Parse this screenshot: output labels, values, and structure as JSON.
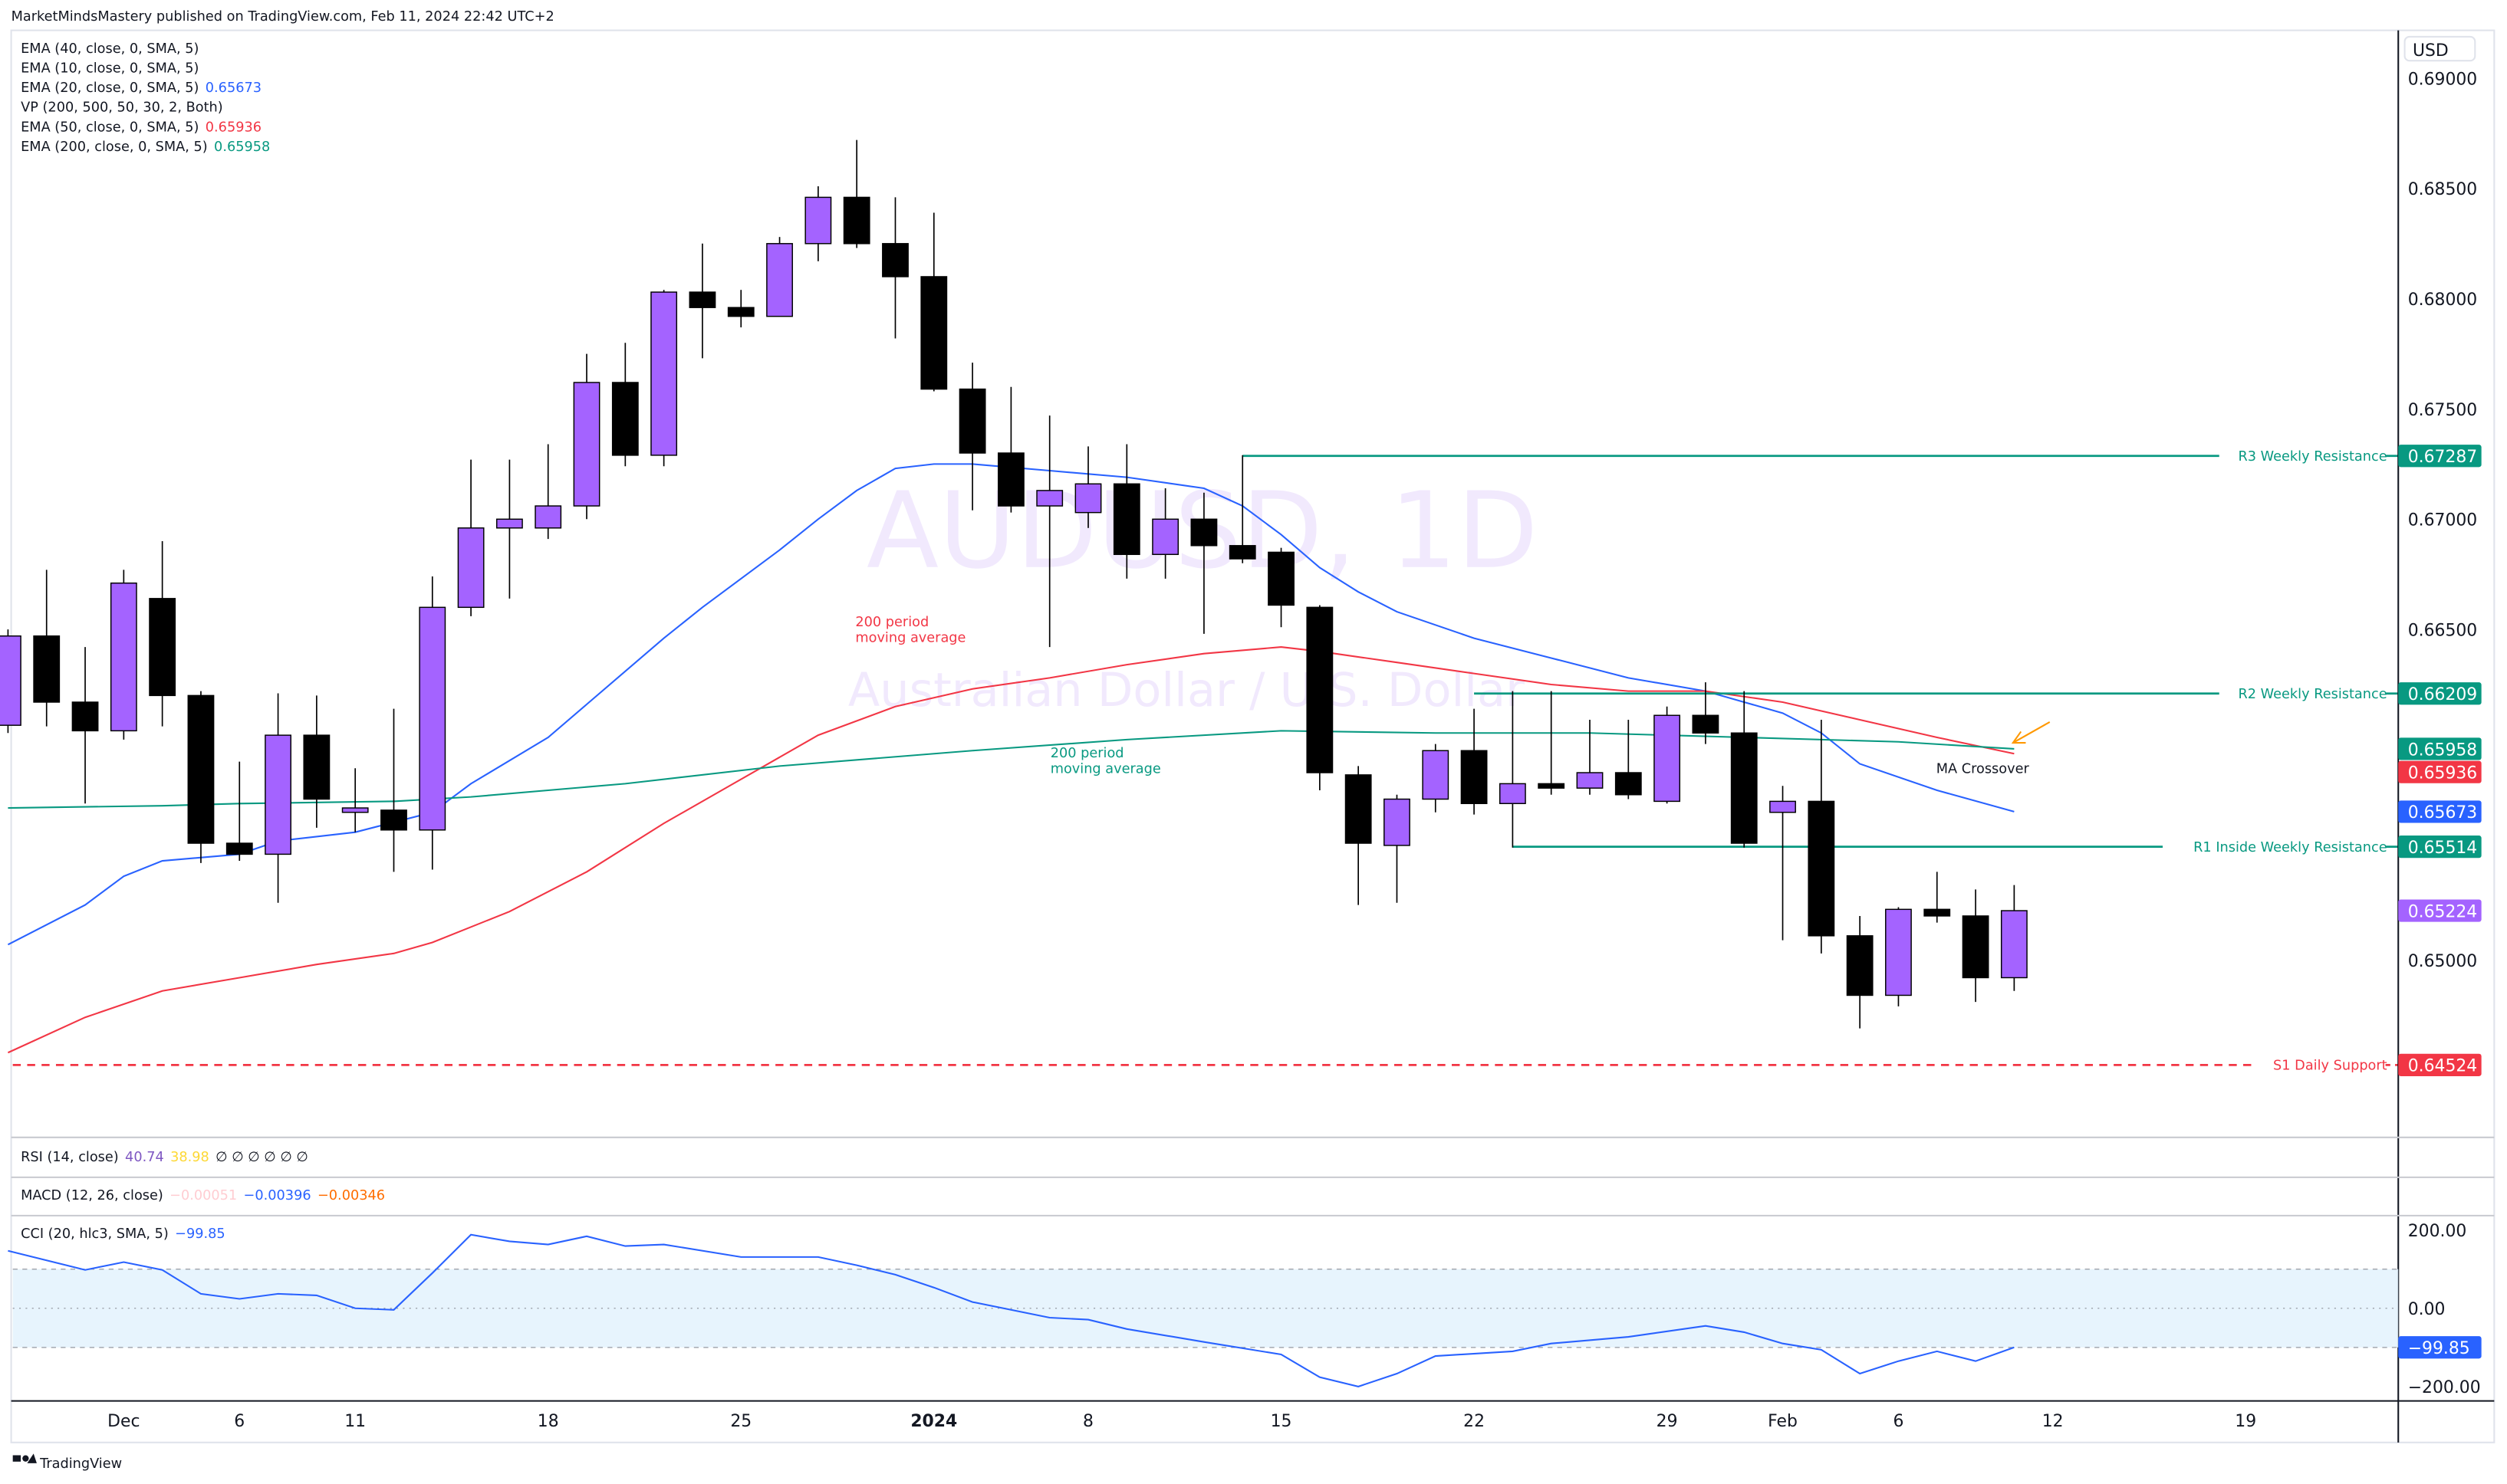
{
  "header": {
    "published": "MarketMindsMastery published on TradingView.com, Feb 11, 2024 22:42 UTC+2"
  },
  "legend": [
    {
      "label": "EMA (40, close, 0, SMA, 5)",
      "value": "",
      "color": "#131722"
    },
    {
      "label": "EMA (10, close, 0, SMA, 5)",
      "value": "",
      "color": "#131722"
    },
    {
      "label": "EMA (20, close, 0, SMA, 5)",
      "value": "0.65673",
      "color": "#2962ff"
    },
    {
      "label": "VP (200, 500, 50, 30, 2, Both)",
      "value": "",
      "color": "#131722"
    },
    {
      "label": "EMA (50, close, 0, SMA, 5)",
      "value": "0.65936",
      "color": "#f23645"
    },
    {
      "label": "EMA (200, close, 0, SMA, 5)",
      "value": "0.65958",
      "color": "#089981"
    }
  ],
  "watermark": {
    "symbol": "AUDUSD, 1D",
    "name": "Australian Dollar / U.S. Dollar"
  },
  "currency": "USD",
  "indicators": {
    "rsi": {
      "label": "RSI (14, close)",
      "v1": "40.74",
      "v2": "38.98",
      "rest": "∅ ∅ ∅ ∅ ∅ ∅"
    },
    "macd": {
      "label": "MACD (12, 26, close)",
      "v1": "−0.00051",
      "v2": "−0.00396",
      "v3": "−0.00346"
    },
    "cci": {
      "label": "CCI (20, hlc3, SMA, 5)",
      "v1": "−99.85"
    }
  },
  "annotations": {
    "ema50_note_1": "200 period",
    "ema50_note_2": "moving average",
    "ema200_note_1": "200 period",
    "ema200_note_2": "moving average",
    "crossover": "MA Crossover"
  },
  "footer": {
    "brand": "TradingView"
  },
  "colors": {
    "up": "#a463ff",
    "down": "#000000",
    "ema20": "#2962ff",
    "ema50": "#f23645",
    "ema200": "#089981",
    "watermark": "#f1e9fd"
  },
  "chart_data": {
    "type": "candlestick",
    "title": "AUDUSD, 1D",
    "ylabel": "USD",
    "ylim": [
      0.6415,
      0.6915
    ],
    "y_ticks": [
      "0.69000",
      "0.68500",
      "0.68000",
      "0.67500",
      "0.67000",
      "0.66500",
      "0.65000"
    ],
    "x_ticks": [
      {
        "i": 3,
        "label": "Dec",
        "bold": false
      },
      {
        "i": 6,
        "label": "6",
        "bold": false
      },
      {
        "i": 9,
        "label": "11",
        "bold": false
      },
      {
        "i": 14,
        "label": "18",
        "bold": false
      },
      {
        "i": 19,
        "label": "25",
        "bold": false
      },
      {
        "i": 24,
        "label": "2024",
        "bold": true
      },
      {
        "i": 28,
        "label": "8",
        "bold": false
      },
      {
        "i": 33,
        "label": "15",
        "bold": false
      },
      {
        "i": 38,
        "label": "22",
        "bold": false
      },
      {
        "i": 43,
        "label": "29",
        "bold": false
      },
      {
        "i": 46,
        "label": "Feb",
        "bold": false
      },
      {
        "i": 49,
        "label": "6",
        "bold": false
      },
      {
        "i": 53,
        "label": "12",
        "bold": false
      },
      {
        "i": 58,
        "label": "19",
        "bold": false
      }
    ],
    "ohlc": [
      [
        0.66065,
        0.665,
        0.6603,
        0.6647
      ],
      [
        0.6647,
        0.6677,
        0.6606,
        0.6617
      ],
      [
        0.6617,
        0.6642,
        0.6571,
        0.6604
      ],
      [
        0.6604,
        0.6677,
        0.66,
        0.6671
      ],
      [
        0.6664,
        0.669,
        0.6606,
        0.662
      ],
      [
        0.662,
        0.6622,
        0.6544,
        0.6553
      ],
      [
        0.6553,
        0.659,
        0.6545,
        0.6548
      ],
      [
        0.6548,
        0.6621,
        0.6526,
        0.6602
      ],
      [
        0.6602,
        0.662,
        0.656,
        0.6573
      ],
      [
        0.6567,
        0.6587,
        0.6558,
        0.6569
      ],
      [
        0.6568,
        0.6614,
        0.654,
        0.6559
      ],
      [
        0.6559,
        0.6674,
        0.6541,
        0.666
      ],
      [
        0.666,
        0.6727,
        0.6656,
        0.6696
      ],
      [
        0.6696,
        0.6727,
        0.6664,
        0.67
      ],
      [
        0.6696,
        0.6734,
        0.6691,
        0.6706
      ],
      [
        0.6706,
        0.6775,
        0.67,
        0.6762
      ],
      [
        0.6762,
        0.678,
        0.6724,
        0.6729
      ],
      [
        0.6729,
        0.6804,
        0.6724,
        0.6803
      ],
      [
        0.6803,
        0.6825,
        0.6773,
        0.6796
      ],
      [
        0.6796,
        0.6804,
        0.6787,
        0.6792
      ],
      [
        0.6792,
        0.6828,
        0.6792,
        0.6825
      ],
      [
        0.6825,
        0.6851,
        0.6817,
        0.6846
      ],
      [
        0.6846,
        0.6872,
        0.6823,
        0.6825
      ],
      [
        0.6825,
        0.6846,
        0.6782,
        0.681
      ],
      [
        0.681,
        0.6839,
        0.6758,
        0.6759
      ],
      [
        0.6759,
        0.6771,
        0.6704,
        0.673
      ],
      [
        0.673,
        0.676,
        0.6703,
        0.6706
      ],
      [
        0.6706,
        0.6747,
        0.6642,
        0.6713
      ],
      [
        0.6703,
        0.6733,
        0.6696,
        0.6716
      ],
      [
        0.6716,
        0.6734,
        0.6673,
        0.6684
      ],
      [
        0.6684,
        0.6714,
        0.6673,
        0.67
      ],
      [
        0.67,
        0.6712,
        0.6648,
        0.6688
      ],
      [
        0.6688,
        0.6729,
        0.668,
        0.6682
      ],
      [
        0.6685,
        0.6687,
        0.6651,
        0.6661
      ],
      [
        0.666,
        0.6661,
        0.6577,
        0.6585
      ],
      [
        0.6584,
        0.6588,
        0.6525,
        0.6553
      ],
      [
        0.6552,
        0.6575,
        0.6526,
        0.6573
      ],
      [
        0.6573,
        0.6598,
        0.6567,
        0.6595
      ],
      [
        0.6595,
        0.6614,
        0.6566,
        0.6571
      ],
      [
        0.6571,
        0.6622,
        0.6551,
        0.658
      ],
      [
        0.658,
        0.6622,
        0.6575,
        0.6578
      ],
      [
        0.6578,
        0.6609,
        0.6575,
        0.6585
      ],
      [
        0.6585,
        0.6609,
        0.6573,
        0.6575
      ],
      [
        0.6572,
        0.6615,
        0.6571,
        0.6611
      ],
      [
        0.6611,
        0.6626,
        0.6598,
        0.6603
      ],
      [
        0.6603,
        0.6622,
        0.6551,
        0.6553
      ],
      [
        0.6567,
        0.6579,
        0.6509,
        0.6572
      ],
      [
        0.6572,
        0.6609,
        0.6503,
        0.6511
      ],
      [
        0.6511,
        0.652,
        0.6469,
        0.6484
      ],
      [
        0.6484,
        0.6524,
        0.6479,
        0.6523
      ],
      [
        0.6523,
        0.654,
        0.6517,
        0.652
      ],
      [
        0.652,
        0.6532,
        0.6481,
        0.6492
      ],
      [
        0.6492,
        0.6534,
        0.6486,
        0.65224
      ]
    ],
    "series": [
      {
        "name": "EMA 20",
        "color": "#2962ff",
        "points": [
          [
            0,
            0.6507
          ],
          [
            2,
            0.6525
          ],
          [
            3,
            0.6538
          ],
          [
            4,
            0.6545
          ],
          [
            6,
            0.6548
          ],
          [
            7,
            0.6554
          ],
          [
            9,
            0.6558
          ],
          [
            11,
            0.6567
          ],
          [
            12,
            0.658
          ],
          [
            14,
            0.6601
          ],
          [
            15,
            0.6616
          ],
          [
            17,
            0.6646
          ],
          [
            18,
            0.666
          ],
          [
            20,
            0.6686
          ],
          [
            21,
            0.67
          ],
          [
            22,
            0.6713
          ],
          [
            23,
            0.6723
          ],
          [
            24,
            0.6725
          ],
          [
            25,
            0.6725
          ],
          [
            27,
            0.6722
          ],
          [
            29,
            0.6719
          ],
          [
            31,
            0.6714
          ],
          [
            32,
            0.6706
          ],
          [
            33,
            0.6693
          ],
          [
            34,
            0.6678
          ],
          [
            35,
            0.6667
          ],
          [
            36,
            0.6658
          ],
          [
            38,
            0.6646
          ],
          [
            40,
            0.6637
          ],
          [
            42,
            0.6628
          ],
          [
            44,
            0.6622
          ],
          [
            45,
            0.6617
          ],
          [
            46,
            0.6612
          ],
          [
            47,
            0.6603
          ],
          [
            48,
            0.6589
          ],
          [
            50,
            0.6577
          ],
          [
            52,
            0.65673
          ]
        ]
      },
      {
        "name": "EMA 50",
        "color": "#f23645",
        "points": [
          [
            0,
            0.6458
          ],
          [
            2,
            0.6474
          ],
          [
            4,
            0.6486
          ],
          [
            6,
            0.6492
          ],
          [
            8,
            0.6498
          ],
          [
            10,
            0.6503
          ],
          [
            11,
            0.6508
          ],
          [
            13,
            0.6522
          ],
          [
            15,
            0.654
          ],
          [
            17,
            0.6562
          ],
          [
            19,
            0.6582
          ],
          [
            21,
            0.6602
          ],
          [
            23,
            0.6615
          ],
          [
            25,
            0.6623
          ],
          [
            27,
            0.6628
          ],
          [
            29,
            0.6634
          ],
          [
            31,
            0.6639
          ],
          [
            33,
            0.6642
          ],
          [
            34,
            0.664
          ],
          [
            36,
            0.6635
          ],
          [
            38,
            0.663
          ],
          [
            40,
            0.6625
          ],
          [
            42,
            0.6622
          ],
          [
            44,
            0.6622
          ],
          [
            46,
            0.6617
          ],
          [
            48,
            0.6609
          ],
          [
            50,
            0.6601
          ],
          [
            52,
            0.65936
          ]
        ]
      },
      {
        "name": "EMA 200",
        "color": "#089981",
        "points": [
          [
            0,
            0.6569
          ],
          [
            4,
            0.657
          ],
          [
            6,
            0.6571
          ],
          [
            10,
            0.6572
          ],
          [
            12,
            0.6574
          ],
          [
            16,
            0.658
          ],
          [
            20,
            0.6588
          ],
          [
            25,
            0.6595
          ],
          [
            29,
            0.66
          ],
          [
            33,
            0.6604
          ],
          [
            37,
            0.6603
          ],
          [
            41,
            0.6603
          ],
          [
            45,
            0.6601
          ],
          [
            49,
            0.6599
          ],
          [
            52,
            0.65958
          ]
        ]
      }
    ],
    "levels": [
      {
        "label": "R3 Weekly Resistance",
        "value": 0.67287,
        "text": "0.67287",
        "start_i": 32,
        "color": "#089981",
        "dashed": false
      },
      {
        "label": "R2 Weekly Resistance",
        "value": 0.66209,
        "text": "0.66209",
        "start_i": 38,
        "color": "#089981",
        "dashed": false
      },
      {
        "label": "R1 Inside Weekly Resistance",
        "value": 0.65514,
        "text": "0.65514",
        "start_i": 39,
        "color": "#089981",
        "dashed": false
      },
      {
        "label": "S1 Daily Support",
        "value": 0.64524,
        "text": "0.64524",
        "start_i": -1,
        "color": "#f23645",
        "dashed": true
      }
    ],
    "price_badges": [
      {
        "value": 0.67287,
        "text": "0.67287",
        "color": "#089981"
      },
      {
        "value": 0.66209,
        "text": "0.66209",
        "color": "#089981"
      },
      {
        "value": 0.65958,
        "text": "0.65958",
        "color": "#089981"
      },
      {
        "value": 0.65936,
        "text": "0.65936",
        "color": "#f23645"
      },
      {
        "value": 0.65673,
        "text": "0.65673",
        "color": "#2962ff"
      },
      {
        "value": 0.65514,
        "text": "0.65514",
        "color": "#089981"
      },
      {
        "value": 0.65224,
        "text": "0.65224",
        "color": "#a463ff"
      },
      {
        "value": 0.64524,
        "text": "0.64524",
        "color": "#f23645"
      }
    ],
    "cci": {
      "ylim": [
        -200,
        200
      ],
      "y_ticks": [
        "200.00",
        "0.00",
        "−200.00"
      ],
      "band": [
        -100,
        100
      ],
      "last": "−99.85",
      "points": [
        [
          0,
          147
        ],
        [
          2,
          98
        ],
        [
          3,
          118
        ],
        [
          4,
          98
        ],
        [
          5,
          37
        ],
        [
          6,
          24
        ],
        [
          7,
          37
        ],
        [
          8,
          33
        ],
        [
          9,
          0
        ],
        [
          10,
          -4
        ],
        [
          11,
          90
        ],
        [
          12,
          188
        ],
        [
          13,
          171
        ],
        [
          14,
          163
        ],
        [
          15,
          184
        ],
        [
          16,
          159
        ],
        [
          17,
          163
        ],
        [
          19,
          131
        ],
        [
          21,
          131
        ],
        [
          22,
          110
        ],
        [
          23,
          86
        ],
        [
          24,
          53
        ],
        [
          25,
          16
        ],
        [
          27,
          -24
        ],
        [
          28,
          -29
        ],
        [
          29,
          -53
        ],
        [
          31,
          -86
        ],
        [
          33,
          -118
        ],
        [
          34,
          -176
        ],
        [
          35,
          -200
        ],
        [
          36,
          -167
        ],
        [
          37,
          -122
        ],
        [
          39,
          -110
        ],
        [
          40,
          -90
        ],
        [
          42,
          -73
        ],
        [
          44,
          -45
        ],
        [
          45,
          -61
        ],
        [
          46,
          -90
        ],
        [
          47,
          -106
        ],
        [
          48,
          -167
        ],
        [
          49,
          -135
        ],
        [
          50,
          -110
        ],
        [
          51,
          -135
        ],
        [
          52,
          -99.85
        ]
      ]
    }
  }
}
